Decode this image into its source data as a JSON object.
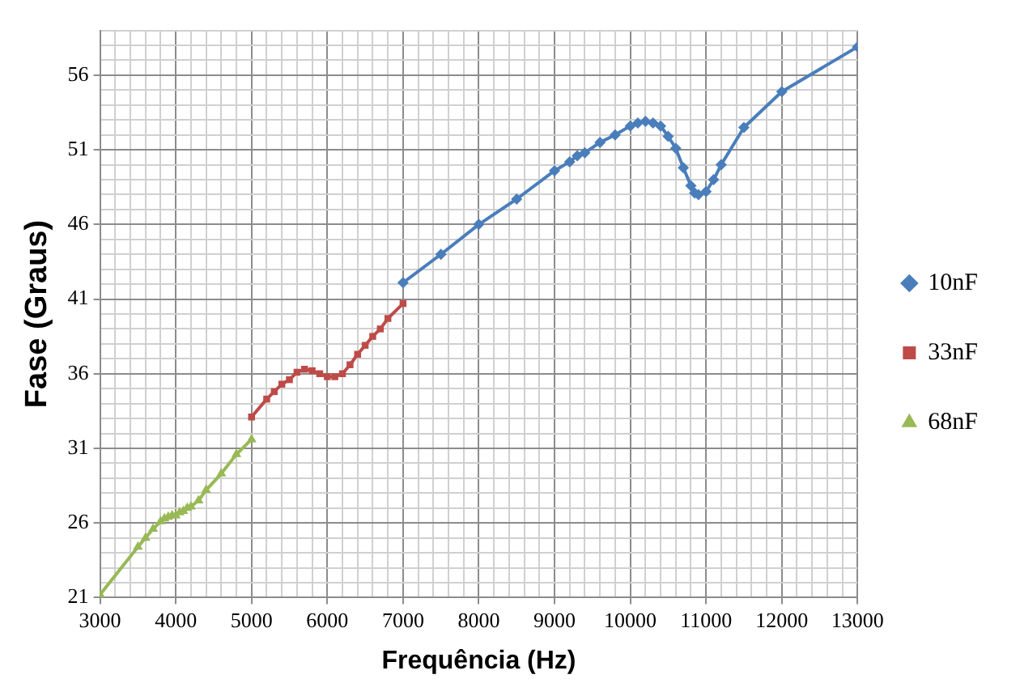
{
  "chart_data": {
    "type": "line",
    "xlabel": "Frequência (Hz)",
    "ylabel": "Fase (Graus)",
    "xlim": [
      3000,
      13000
    ],
    "ylim": [
      21,
      59
    ],
    "xticks": [
      3000,
      {
        "value": 3200,
        "label": null
      },
      {
        "value": 3400,
        "label": null
      },
      {
        "value": 3600,
        "label": null
      },
      {
        "value": 3800,
        "label": null
      },
      4000,
      {
        "value": 4200,
        "label": null
      },
      {
        "value": 4400,
        "label": null
      },
      {
        "value": 4600,
        "label": null
      },
      {
        "value": 4800,
        "label": null
      },
      5000,
      {
        "value": 5200,
        "label": null
      },
      {
        "value": 5400,
        "label": null
      },
      {
        "value": 5600,
        "label": null
      },
      {
        "value": 5800,
        "label": null
      },
      6000,
      {
        "value": 6200,
        "label": null
      },
      {
        "value": 6400,
        "label": null
      },
      {
        "value": 6600,
        "label": null
      },
      {
        "value": 6800,
        "label": null
      },
      7000,
      {
        "value": 7200,
        "label": null
      },
      {
        "value": 7400,
        "label": null
      },
      {
        "value": 7600,
        "label": null
      },
      {
        "value": 7800,
        "label": null
      },
      8000,
      {
        "value": 8200,
        "label": null
      },
      {
        "value": 8400,
        "label": null
      },
      {
        "value": 8600,
        "label": null
      },
      {
        "value": 8800,
        "label": null
      },
      9000,
      {
        "value": 9200,
        "label": null
      },
      {
        "value": 9400,
        "label": null
      },
      {
        "value": 9600,
        "label": null
      },
      {
        "value": 9800,
        "label": null
      },
      10000,
      {
        "value": 10200,
        "label": null
      },
      {
        "value": 10400,
        "label": null
      },
      {
        "value": 10600,
        "label": null
      },
      {
        "value": 10800,
        "label": null
      },
      11000,
      {
        "value": 11200,
        "label": null
      },
      {
        "value": 11400,
        "label": null
      },
      {
        "value": 11600,
        "label": null
      },
      {
        "value": 11800,
        "label": null
      },
      12000,
      {
        "value": 12200,
        "label": null
      },
      {
        "value": 12400,
        "label": null
      },
      {
        "value": 12600,
        "label": null
      },
      {
        "value": 12800,
        "label": null
      },
      13000
    ],
    "yticks": [
      21,
      {
        "value": 22,
        "label": null
      },
      {
        "value": 23,
        "label": null
      },
      {
        "value": 24,
        "label": null
      },
      {
        "value": 25,
        "label": null
      },
      26,
      {
        "value": 27,
        "label": null
      },
      {
        "value": 28,
        "label": null
      },
      {
        "value": 29,
        "label": null
      },
      {
        "value": 30,
        "label": null
      },
      31,
      {
        "value": 32,
        "label": null
      },
      {
        "value": 33,
        "label": null
      },
      {
        "value": 34,
        "label": null
      },
      {
        "value": 35,
        "label": null
      },
      36,
      {
        "value": 37,
        "label": null
      },
      {
        "value": 38,
        "label": null
      },
      {
        "value": 39,
        "label": null
      },
      {
        "value": 40,
        "label": null
      },
      41,
      {
        "value": 42,
        "label": null
      },
      {
        "value": 43,
        "label": null
      },
      {
        "value": 44,
        "label": null
      },
      {
        "value": 45,
        "label": null
      },
      46,
      {
        "value": 47,
        "label": null
      },
      {
        "value": 48,
        "label": null
      },
      {
        "value": 49,
        "label": null
      },
      {
        "value": 50,
        "label": null
      },
      51,
      {
        "value": 52,
        "label": null
      },
      {
        "value": 53,
        "label": null
      },
      {
        "value": 54,
        "label": null
      },
      {
        "value": 55,
        "label": null
      },
      56,
      {
        "value": 57,
        "label": null
      },
      {
        "value": 58,
        "label": null
      },
      {
        "value": 59,
        "label": null
      }
    ],
    "grid": true,
    "legend": "right",
    "line_style": "solid",
    "series": [
      {
        "name": "10nF",
        "color": "#4a7ebb",
        "marker": "diamond",
        "x": [
          7000,
          7500,
          8000,
          8500,
          9000,
          9200,
          9300,
          9400,
          9600,
          9800,
          10000,
          10100,
          10200,
          10300,
          10400,
          10500,
          10600,
          10700,
          10800,
          10850,
          10900,
          11000,
          11100,
          11200,
          11500,
          12000,
          13000
        ],
        "values": [
          42.1,
          44.0,
          46.0,
          47.7,
          49.6,
          50.2,
          50.6,
          50.8,
          51.5,
          52.0,
          52.6,
          52.8,
          52.9,
          52.8,
          52.6,
          51.9,
          51.1,
          49.8,
          48.6,
          48.1,
          48.0,
          48.2,
          49.0,
          50.0,
          52.5,
          54.9,
          57.9
        ]
      },
      {
        "name": "33nF",
        "color": "#be4b48",
        "marker": "square",
        "x": [
          5000,
          5200,
          5300,
          5400,
          5500,
          5600,
          5700,
          5800,
          5900,
          6000,
          6100,
          6200,
          6300,
          6400,
          6500,
          6600,
          6700,
          6800,
          7000
        ],
        "values": [
          33.1,
          34.3,
          34.8,
          35.3,
          35.6,
          36.1,
          36.3,
          36.2,
          36.0,
          35.8,
          35.8,
          36.0,
          36.6,
          37.3,
          37.9,
          38.5,
          39.0,
          39.7,
          40.7
        ]
      },
      {
        "name": "68nF",
        "color": "#98b954",
        "marker": "triangle",
        "x": [
          3000,
          3500,
          3600,
          3700,
          3800,
          3850,
          3900,
          3950,
          4000,
          4050,
          4100,
          4150,
          4200,
          4300,
          4400,
          4600,
          4800,
          5000
        ],
        "values": [
          21.2,
          24.4,
          25.0,
          25.6,
          26.1,
          26.3,
          26.4,
          26.5,
          26.5,
          26.7,
          26.8,
          27.0,
          27.1,
          27.5,
          28.2,
          29.3,
          30.6,
          31.6
        ]
      }
    ]
  }
}
